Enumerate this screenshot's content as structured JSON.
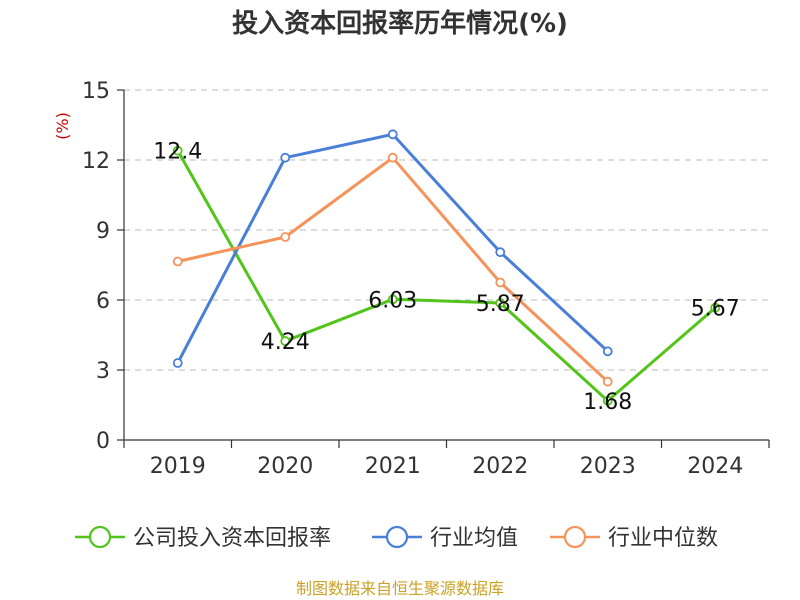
{
  "colors": {
    "company": "#52c41a",
    "industry_avg": "#4a7fd8",
    "industry_median": "#f5935b",
    "grid": "#bbbbbb",
    "axis": "#333333",
    "unit": "#cc0000",
    "source": "#c9a227"
  },
  "chart_data": {
    "type": "line",
    "title": "投入资本回报率历年情况(%)",
    "ylabel": "(%)",
    "ylim": [
      0,
      15
    ],
    "yticks": [
      0,
      3,
      6,
      9,
      12,
      15
    ],
    "grid": true,
    "legend_position": "bottom",
    "categories": [
      "2019",
      "2020",
      "2021",
      "2022",
      "2023",
      "2024"
    ],
    "series": [
      {
        "name": "公司投入资本回报率",
        "values": [
          12.4,
          4.24,
          6.03,
          5.87,
          1.68,
          5.67
        ],
        "labels": [
          "12.4",
          "4.24",
          "6.03",
          "5.87",
          "1.68",
          "5.67"
        ]
      },
      {
        "name": "行业均值",
        "values": [
          3.3,
          12.1,
          13.1,
          8.05,
          3.8,
          null
        ]
      },
      {
        "name": "行业中位数",
        "values": [
          7.65,
          8.7,
          12.1,
          6.75,
          2.5,
          null
        ]
      }
    ]
  },
  "source_text": "制图数据来自恒生聚源数据库"
}
